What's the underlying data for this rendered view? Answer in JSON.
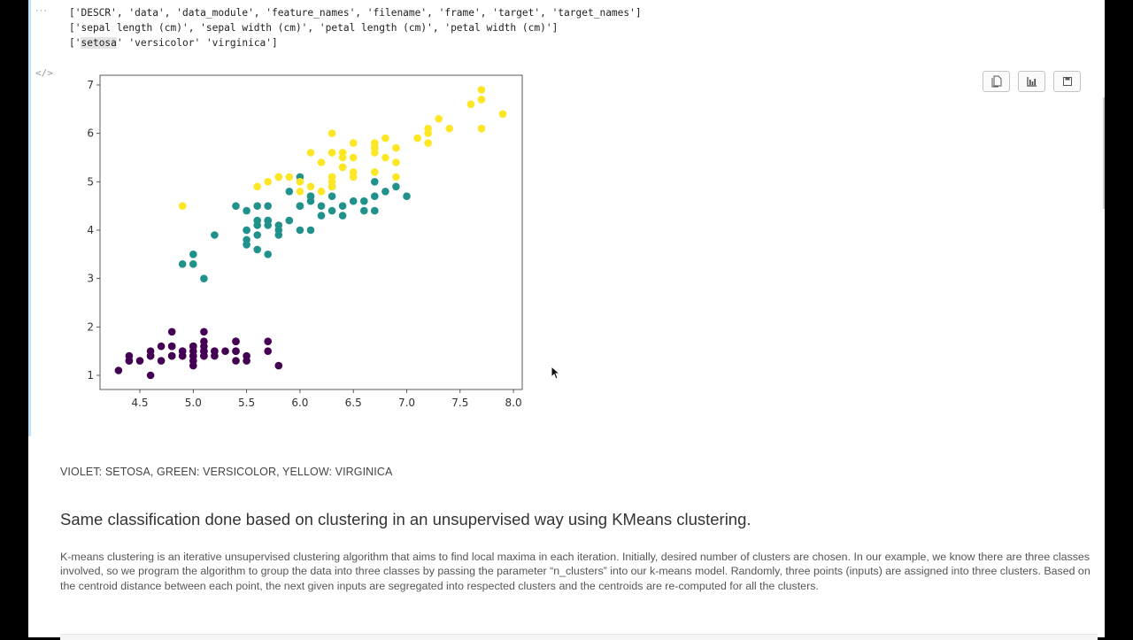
{
  "output": {
    "gutter_label": "···",
    "code_toggle_label": "</>",
    "lines": [
      "['DESCR', 'data', 'data_module', 'feature_names', 'filename', 'frame', 'target', 'target_names']",
      "['sepal length (cm)', 'sepal width (cm)', 'petal length (cm)', 'petal width (cm)']"
    ],
    "line3_prefix": "['",
    "line3_highlight": "setosa",
    "line3_suffix": "' 'versicolor' 'virginica']"
  },
  "toolbar": {
    "buttons": [
      {
        "name": "copy-button",
        "icon": "copy-icon"
      },
      {
        "name": "chart-button",
        "icon": "bar-chart-icon"
      },
      {
        "name": "save-button",
        "icon": "save-icon"
      }
    ]
  },
  "chart_data": {
    "type": "scatter",
    "title": "",
    "xlabel": "",
    "ylabel": "",
    "xlim": [
      4.2,
      8.1
    ],
    "ylim": [
      0.7,
      7.2
    ],
    "xticks": [
      "4.5",
      "5.0",
      "5.5",
      "6.0",
      "6.5",
      "7.0",
      "7.5",
      "8.0"
    ],
    "yticks": [
      "1",
      "2",
      "3",
      "4",
      "5",
      "6",
      "7"
    ],
    "grid": false,
    "legend": "none",
    "series": [
      {
        "name": "setosa",
        "color": "#440154",
        "points": [
          [
            5.1,
            1.4
          ],
          [
            4.9,
            1.4
          ],
          [
            4.7,
            1.3
          ],
          [
            4.6,
            1.5
          ],
          [
            5.0,
            1.4
          ],
          [
            5.4,
            1.7
          ],
          [
            4.6,
            1.4
          ],
          [
            5.0,
            1.5
          ],
          [
            4.4,
            1.4
          ],
          [
            4.9,
            1.5
          ],
          [
            5.4,
            1.5
          ],
          [
            4.8,
            1.6
          ],
          [
            4.8,
            1.4
          ],
          [
            4.3,
            1.1
          ],
          [
            5.8,
            1.2
          ],
          [
            5.7,
            1.5
          ],
          [
            5.4,
            1.3
          ],
          [
            5.1,
            1.4
          ],
          [
            5.7,
            1.7
          ],
          [
            5.1,
            1.5
          ],
          [
            5.4,
            1.7
          ],
          [
            5.1,
            1.5
          ],
          [
            4.6,
            1.0
          ],
          [
            5.1,
            1.7
          ],
          [
            4.8,
            1.9
          ],
          [
            5.0,
            1.6
          ],
          [
            5.0,
            1.6
          ],
          [
            5.2,
            1.5
          ],
          [
            5.2,
            1.4
          ],
          [
            4.7,
            1.6
          ],
          [
            4.8,
            1.6
          ],
          [
            5.4,
            1.5
          ],
          [
            5.2,
            1.5
          ],
          [
            5.5,
            1.4
          ],
          [
            4.9,
            1.5
          ],
          [
            5.0,
            1.2
          ],
          [
            5.5,
            1.3
          ],
          [
            4.9,
            1.4
          ],
          [
            4.4,
            1.3
          ],
          [
            5.1,
            1.5
          ],
          [
            5.0,
            1.3
          ],
          [
            4.5,
            1.3
          ],
          [
            4.4,
            1.3
          ],
          [
            5.0,
            1.6
          ],
          [
            5.1,
            1.9
          ],
          [
            4.8,
            1.4
          ],
          [
            5.1,
            1.6
          ],
          [
            4.6,
            1.4
          ],
          [
            5.3,
            1.5
          ],
          [
            5.0,
            1.4
          ]
        ]
      },
      {
        "name": "versicolor",
        "color": "#21918c",
        "points": [
          [
            7.0,
            4.7
          ],
          [
            6.4,
            4.5
          ],
          [
            6.9,
            4.9
          ],
          [
            5.5,
            4.0
          ],
          [
            6.5,
            4.6
          ],
          [
            5.7,
            4.5
          ],
          [
            6.3,
            4.7
          ],
          [
            4.9,
            3.3
          ],
          [
            6.6,
            4.6
          ],
          [
            5.2,
            3.9
          ],
          [
            5.0,
            3.5
          ],
          [
            5.9,
            4.2
          ],
          [
            6.0,
            4.0
          ],
          [
            6.1,
            4.7
          ],
          [
            5.6,
            3.6
          ],
          [
            6.7,
            4.4
          ],
          [
            5.6,
            4.5
          ],
          [
            5.8,
            4.1
          ],
          [
            6.2,
            4.5
          ],
          [
            5.6,
            3.9
          ],
          [
            5.9,
            4.8
          ],
          [
            6.1,
            4.0
          ],
          [
            6.3,
            4.9
          ],
          [
            6.1,
            4.7
          ],
          [
            6.4,
            4.3
          ],
          [
            6.6,
            4.4
          ],
          [
            6.8,
            4.8
          ],
          [
            6.7,
            5.0
          ],
          [
            6.0,
            4.5
          ],
          [
            5.7,
            3.5
          ],
          [
            5.5,
            3.8
          ],
          [
            5.5,
            3.7
          ],
          [
            5.8,
            3.9
          ],
          [
            6.0,
            5.1
          ],
          [
            5.4,
            4.5
          ],
          [
            6.0,
            4.5
          ],
          [
            6.7,
            4.7
          ],
          [
            6.3,
            4.4
          ],
          [
            5.6,
            4.1
          ],
          [
            5.5,
            4.0
          ],
          [
            5.5,
            4.4
          ],
          [
            6.1,
            4.6
          ],
          [
            5.8,
            4.0
          ],
          [
            5.0,
            3.3
          ],
          [
            5.6,
            4.2
          ],
          [
            5.7,
            4.2
          ],
          [
            5.7,
            4.2
          ],
          [
            6.2,
            4.3
          ],
          [
            5.1,
            3.0
          ],
          [
            5.7,
            4.1
          ]
        ]
      },
      {
        "name": "virginica",
        "color": "#fde725",
        "points": [
          [
            6.3,
            6.0
          ],
          [
            5.8,
            5.1
          ],
          [
            7.1,
            5.9
          ],
          [
            6.3,
            5.6
          ],
          [
            6.5,
            5.8
          ],
          [
            7.6,
            6.6
          ],
          [
            4.9,
            4.5
          ],
          [
            7.3,
            6.3
          ],
          [
            6.7,
            5.8
          ],
          [
            7.2,
            6.1
          ],
          [
            6.5,
            5.1
          ],
          [
            6.4,
            5.3
          ],
          [
            6.8,
            5.5
          ],
          [
            5.7,
            5.0
          ],
          [
            5.8,
            5.1
          ],
          [
            6.4,
            5.3
          ],
          [
            6.5,
            5.5
          ],
          [
            7.7,
            6.7
          ],
          [
            7.7,
            6.9
          ],
          [
            6.0,
            5.0
          ],
          [
            6.9,
            5.7
          ],
          [
            5.6,
            4.9
          ],
          [
            7.7,
            6.7
          ],
          [
            6.3,
            4.9
          ],
          [
            6.7,
            5.7
          ],
          [
            7.2,
            6.0
          ],
          [
            6.2,
            4.8
          ],
          [
            6.1,
            4.9
          ],
          [
            6.4,
            5.6
          ],
          [
            7.2,
            5.8
          ],
          [
            7.4,
            6.1
          ],
          [
            7.9,
            6.4
          ],
          [
            6.4,
            5.6
          ],
          [
            6.3,
            5.1
          ],
          [
            6.1,
            5.6
          ],
          [
            7.7,
            6.1
          ],
          [
            6.3,
            5.6
          ],
          [
            6.4,
            5.5
          ],
          [
            6.0,
            4.8
          ],
          [
            6.9,
            5.4
          ],
          [
            6.7,
            5.6
          ],
          [
            6.9,
            5.1
          ],
          [
            5.8,
            5.1
          ],
          [
            6.8,
            5.9
          ],
          [
            6.7,
            5.7
          ],
          [
            6.7,
            5.2
          ],
          [
            6.3,
            5.0
          ],
          [
            6.5,
            5.2
          ],
          [
            6.2,
            5.4
          ],
          [
            5.9,
            5.1
          ]
        ]
      }
    ]
  },
  "notes": {
    "legend_text": "VIOLET: SETOSA, GREEN: VERSICOLOR, YELLOW: VIRGINICA",
    "heading": "Same classification done based on clustering in an unsupervised way using KMeans clustering.",
    "paragraph": "K-means clustering is an iterative unsupervised clustering algorithm that aims to find local maxima in each iteration. Initially, desired number of clusters are chosen. In our example, we know there are three classes involved, so we program the algorithm to group the data into three classes by passing the parameter “n_clusters” into our k-means model. Randomly, three points (inputs) are assigned into three clusters. Based on the centroid distance between each point, the next given inputs are segregated into respected clusters and the centroids are re-computed for all the clusters."
  }
}
